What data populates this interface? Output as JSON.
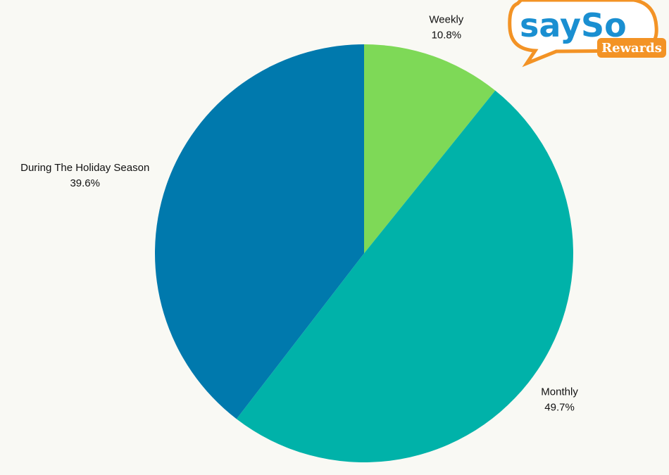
{
  "chart_data": {
    "type": "pie",
    "categories": [
      "Weekly",
      "Monthly",
      "During The Holiday Season"
    ],
    "values": [
      10.8,
      49.7,
      39.6
    ],
    "value_labels": [
      "10.8%",
      "49.7%",
      "39.6%"
    ],
    "colors": [
      "#7ed957",
      "#00b2a9",
      "#0079ad"
    ]
  },
  "logo": {
    "text": "saySo",
    "subtext": "Rewards"
  }
}
